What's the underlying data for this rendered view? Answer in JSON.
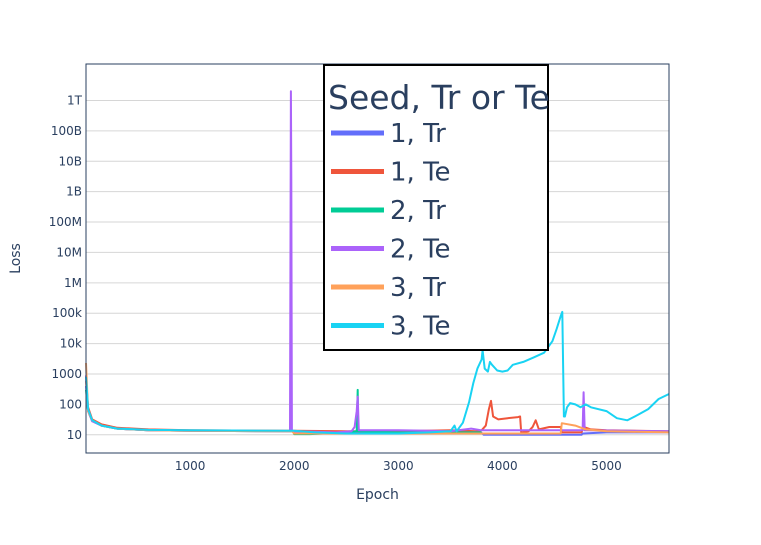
{
  "chart_data": {
    "type": "line",
    "xlabel": "Epoch",
    "ylabel": "Loss",
    "y_scale": "log",
    "xlim": [
      0,
      5600
    ],
    "ylim_exponent": [
      0.4,
      13.2
    ],
    "x_ticks": [
      {
        "value": 1000,
        "label": "1000"
      },
      {
        "value": 2000,
        "label": "2000"
      },
      {
        "value": 3000,
        "label": "3000"
      },
      {
        "value": 4000,
        "label": "4000"
      },
      {
        "value": 5000,
        "label": "5000"
      }
    ],
    "y_ticks": [
      {
        "exp": 1,
        "label": "10"
      },
      {
        "exp": 2,
        "label": "100"
      },
      {
        "exp": 3,
        "label": "1000"
      },
      {
        "exp": 4,
        "label": "10k"
      },
      {
        "exp": 5,
        "label": "100k"
      },
      {
        "exp": 6,
        "label": "1M"
      },
      {
        "exp": 7,
        "label": "10M"
      },
      {
        "exp": 8,
        "label": "100M"
      },
      {
        "exp": 9,
        "label": "1B"
      },
      {
        "exp": 10,
        "label": "10B"
      },
      {
        "exp": 11,
        "label": "100B"
      },
      {
        "exp": 12,
        "label": "1T"
      }
    ],
    "grid": true,
    "legend": {
      "title": "Seed, Tr or Te",
      "placement": "top-center"
    },
    "series": [
      {
        "name": "1, Tr",
        "color": "#636efa",
        "points": [
          [
            0,
            400
          ],
          [
            20,
            60
          ],
          [
            60,
            28
          ],
          [
            150,
            20
          ],
          [
            300,
            16
          ],
          [
            600,
            14
          ],
          [
            1000,
            13.5
          ],
          [
            2000,
            13
          ],
          [
            2200,
            12.5
          ],
          [
            2500,
            12
          ],
          [
            3000,
            11.5
          ],
          [
            3500,
            11.5
          ],
          [
            3800,
            11.5
          ],
          [
            3820,
            10
          ],
          [
            4200,
            10
          ],
          [
            4600,
            10
          ],
          [
            4610,
            10
          ],
          [
            4760,
            10
          ],
          [
            4770,
            11
          ],
          [
            5000,
            12
          ],
          [
            5600,
            12
          ]
        ]
      },
      {
        "name": "1, Te",
        "color": "#ef553b",
        "points": [
          [
            0,
            600
          ],
          [
            20,
            80
          ],
          [
            60,
            32
          ],
          [
            150,
            22
          ],
          [
            300,
            17
          ],
          [
            600,
            15
          ],
          [
            1000,
            14
          ],
          [
            2000,
            13.5
          ],
          [
            2500,
            13
          ],
          [
            3000,
            13
          ],
          [
            3500,
            14
          ],
          [
            3750,
            13
          ],
          [
            3800,
            14
          ],
          [
            3840,
            20
          ],
          [
            3870,
            70
          ],
          [
            3890,
            130
          ],
          [
            3910,
            40
          ],
          [
            3960,
            32
          ],
          [
            4050,
            35
          ],
          [
            4150,
            38
          ],
          [
            4170,
            40
          ],
          [
            4180,
            12
          ],
          [
            4250,
            13
          ],
          [
            4290,
            18
          ],
          [
            4320,
            30
          ],
          [
            4350,
            15
          ],
          [
            4450,
            18
          ],
          [
            4500,
            18
          ],
          [
            4560,
            18
          ],
          [
            4570,
            12
          ],
          [
            4750,
            12
          ],
          [
            4760,
            12
          ],
          [
            4780,
            18
          ],
          [
            4850,
            15
          ],
          [
            5000,
            14
          ],
          [
            5600,
            13
          ]
        ]
      },
      {
        "name": "2, Tr",
        "color": "#00cc96",
        "points": [
          [
            0,
            300
          ],
          [
            20,
            60
          ],
          [
            60,
            30
          ],
          [
            150,
            20
          ],
          [
            300,
            16
          ],
          [
            600,
            14
          ],
          [
            1000,
            13.5
          ],
          [
            1990,
            13
          ],
          [
            2000,
            10.5
          ],
          [
            2150,
            10.5
          ],
          [
            2500,
            12
          ],
          [
            2600,
            13
          ],
          [
            2610,
            300
          ],
          [
            2615,
            13
          ],
          [
            3000,
            12
          ],
          [
            3500,
            12
          ],
          [
            3800,
            12
          ]
        ]
      },
      {
        "name": "2, Te",
        "color": "#ab63fa",
        "points": [
          [
            0,
            900
          ],
          [
            20,
            60
          ],
          [
            60,
            28
          ],
          [
            150,
            20
          ],
          [
            300,
            16
          ],
          [
            600,
            14
          ],
          [
            1000,
            13.5
          ],
          [
            1960,
            13
          ],
          [
            1968,
            2000000000000
          ],
          [
            1972,
            3000000000
          ],
          [
            1978,
            13
          ],
          [
            2200,
            12.5
          ],
          [
            2400,
            12
          ],
          [
            2550,
            13
          ],
          [
            2580,
            18
          ],
          [
            2600,
            60
          ],
          [
            2610,
            180
          ],
          [
            2620,
            14
          ],
          [
            3000,
            14
          ],
          [
            3300,
            13.5
          ],
          [
            3500,
            13
          ],
          [
            3700,
            16
          ],
          [
            3800,
            14
          ],
          [
            4770,
            14
          ],
          [
            4780,
            250
          ],
          [
            4790,
            14
          ],
          [
            5600,
            13
          ]
        ]
      },
      {
        "name": "3, Tr",
        "color": "#ffa15a",
        "points": [
          [
            0,
            2300
          ],
          [
            20,
            60
          ],
          [
            60,
            30
          ],
          [
            150,
            20
          ],
          [
            300,
            16
          ],
          [
            600,
            14
          ],
          [
            1000,
            13.5
          ],
          [
            1980,
            13
          ],
          [
            2000,
            11
          ],
          [
            2200,
            11
          ],
          [
            2600,
            11
          ],
          [
            3000,
            11
          ],
          [
            3500,
            11
          ],
          [
            3800,
            11
          ],
          [
            4000,
            11
          ],
          [
            4200,
            11
          ],
          [
            4500,
            11
          ],
          [
            4560,
            11
          ],
          [
            4570,
            24
          ],
          [
            4700,
            20
          ],
          [
            4800,
            15
          ],
          [
            5000,
            13
          ],
          [
            5600,
            12
          ]
        ]
      },
      {
        "name": "3, Te",
        "color": "#19d3f3",
        "points": [
          [
            0,
            800
          ],
          [
            20,
            70
          ],
          [
            60,
            30
          ],
          [
            150,
            20
          ],
          [
            300,
            16
          ],
          [
            600,
            14.5
          ],
          [
            1000,
            14
          ],
          [
            2000,
            13.5
          ],
          [
            2200,
            12
          ],
          [
            2500,
            11
          ],
          [
            3000,
            11
          ],
          [
            3300,
            12
          ],
          [
            3500,
            13
          ],
          [
            3540,
            20
          ],
          [
            3560,
            13
          ],
          [
            3620,
            25
          ],
          [
            3680,
            120
          ],
          [
            3720,
            500
          ],
          [
            3760,
            1500
          ],
          [
            3800,
            3000
          ],
          [
            3810,
            6000
          ],
          [
            3830,
            1500
          ],
          [
            3860,
            1200
          ],
          [
            3880,
            2500
          ],
          [
            3900,
            2000
          ],
          [
            3950,
            1300
          ],
          [
            4000,
            1200
          ],
          [
            4050,
            1300
          ],
          [
            4100,
            2000
          ],
          [
            4200,
            2500
          ],
          [
            4300,
            3500
          ],
          [
            4400,
            5000
          ],
          [
            4480,
            12000
          ],
          [
            4520,
            30000
          ],
          [
            4560,
            80000
          ],
          [
            4575,
            110000
          ],
          [
            4590,
            40
          ],
          [
            4600,
            40
          ],
          [
            4620,
            80
          ],
          [
            4650,
            110
          ],
          [
            4700,
            100
          ],
          [
            4750,
            80
          ],
          [
            4800,
            100
          ],
          [
            4850,
            80
          ],
          [
            5000,
            60
          ],
          [
            5100,
            35
          ],
          [
            5200,
            30
          ],
          [
            5300,
            45
          ],
          [
            5400,
            70
          ],
          [
            5500,
            150
          ],
          [
            5600,
            220
          ]
        ]
      }
    ]
  }
}
